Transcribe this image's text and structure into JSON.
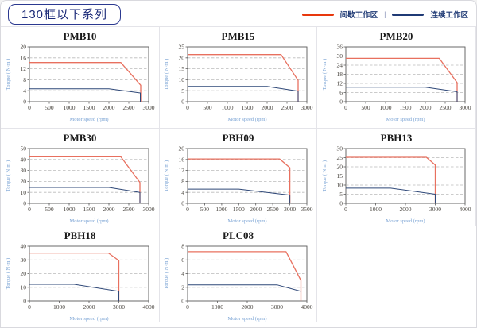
{
  "header": {
    "title": "130框以下系列",
    "legend": {
      "intermittent": {
        "label": "间歇工作区",
        "color": "#e8380d"
      },
      "separator": "|",
      "continuous": {
        "label": "连续工作区",
        "color": "#1f3a75"
      }
    }
  },
  "colors": {
    "intermittent_line": "#e8705f",
    "continuous_line": "#2f4878",
    "gridline": "#bbbbbb",
    "axis": "#5a5a5a",
    "axis_label_text": "#7aa3d4",
    "tick_text": "#46423c",
    "cell_border": "#e4e4e9",
    "title_box_border": "#2b3990",
    "title_box_text": "#1b2a78"
  },
  "chart_data": [
    {
      "type": "line",
      "title": "PMB10",
      "xlabel": "Motor speed (rpm)",
      "ylabel": "Torque ( N·m )",
      "xlim": [
        0,
        3000
      ],
      "xticks": [
        0,
        500,
        1000,
        1500,
        2000,
        2500,
        3000
      ],
      "ylim": [
        0,
        20
      ],
      "yticks": [
        0,
        4,
        8,
        12,
        16,
        20
      ],
      "grid": "horizontal-dashed",
      "series": [
        {
          "name": "间歇工作区",
          "color": "#e8705f",
          "points": [
            [
              0,
              14.3
            ],
            [
              2300,
              14.3
            ],
            [
              2800,
              6
            ],
            [
              2800,
              0
            ]
          ]
        },
        {
          "name": "连续工作区",
          "color": "#2f4878",
          "points": [
            [
              0,
              4.7
            ],
            [
              2000,
              4.7
            ],
            [
              2790,
              3.2
            ],
            [
              2790,
              0
            ]
          ]
        }
      ]
    },
    {
      "type": "line",
      "title": "PMB15",
      "xlabel": "Motor speed (rpm)",
      "ylabel": "Torque ( N·m )",
      "xlim": [
        0,
        3000
      ],
      "xticks": [
        0,
        500,
        1000,
        1500,
        2000,
        2500,
        3000
      ],
      "ylim": [
        0,
        25
      ],
      "yticks": [
        0,
        5,
        10,
        15,
        20,
        25
      ],
      "grid": "horizontal-dashed",
      "series": [
        {
          "name": "间歇工作区",
          "color": "#e8705f",
          "points": [
            [
              0,
              21.5
            ],
            [
              2350,
              21.5
            ],
            [
              2780,
              9.7
            ],
            [
              2780,
              0
            ]
          ]
        },
        {
          "name": "连续工作区",
          "color": "#2f4878",
          "points": [
            [
              0,
              7
            ],
            [
              2000,
              7
            ],
            [
              2780,
              4.8
            ],
            [
              2780,
              0
            ]
          ]
        }
      ]
    },
    {
      "type": "line",
      "title": "PMB20",
      "xlabel": "Motor speed (rpm)",
      "ylabel": "Torque ( N·m )",
      "xlim": [
        0,
        3000
      ],
      "xticks": [
        0,
        500,
        1000,
        1500,
        2000,
        2500,
        3000
      ],
      "ylim": [
        0,
        36
      ],
      "yticks": [
        0,
        6,
        12,
        18,
        24,
        30,
        36
      ],
      "grid": "horizontal-dashed",
      "series": [
        {
          "name": "间歇工作区",
          "color": "#e8705f",
          "points": [
            [
              0,
              28.5
            ],
            [
              2350,
              28.5
            ],
            [
              2800,
              12.5
            ],
            [
              2800,
              0
            ]
          ]
        },
        {
          "name": "连续工作区",
          "color": "#2f4878",
          "points": [
            [
              0,
              9.5
            ],
            [
              2000,
              9.5
            ],
            [
              2800,
              6.5
            ],
            [
              2800,
              0
            ]
          ]
        }
      ]
    },
    {
      "type": "line",
      "title": "PMB30",
      "xlabel": "Motor speed (rpm)",
      "ylabel": "Torque ( N·m )",
      "xlim": [
        0,
        3000
      ],
      "xticks": [
        0,
        500,
        1000,
        1500,
        2000,
        2500,
        3000
      ],
      "ylim": [
        0,
        50
      ],
      "yticks": [
        0,
        10,
        20,
        30,
        40,
        50
      ],
      "grid": "horizontal-dashed",
      "series": [
        {
          "name": "间歇工作区",
          "color": "#e8705f",
          "points": [
            [
              0,
              42.5
            ],
            [
              2300,
              42.5
            ],
            [
              2780,
              19
            ],
            [
              2780,
              0
            ]
          ]
        },
        {
          "name": "连续工作区",
          "color": "#2f4878",
          "points": [
            [
              0,
              14.5
            ],
            [
              2000,
              14.5
            ],
            [
              2780,
              10
            ],
            [
              2780,
              0
            ]
          ]
        }
      ]
    },
    {
      "type": "line",
      "title": "PBH09",
      "xlabel": "Motor speed (rpm)",
      "ylabel": "Torque ( N·m )",
      "xlim": [
        0,
        3500
      ],
      "xticks": [
        0,
        500,
        1000,
        1500,
        2000,
        2500,
        3000,
        3500
      ],
      "ylim": [
        0,
        20
      ],
      "yticks": [
        0,
        4,
        8,
        12,
        16,
        20
      ],
      "grid": "horizontal-dashed",
      "series": [
        {
          "name": "间歇工作区",
          "color": "#e8705f",
          "points": [
            [
              0,
              16.2
            ],
            [
              2700,
              16.2
            ],
            [
              3000,
              13
            ],
            [
              3000,
              0
            ]
          ]
        },
        {
          "name": "连续工作区",
          "color": "#2f4878",
          "points": [
            [
              0,
              5.2
            ],
            [
              1500,
              5.2
            ],
            [
              3000,
              3
            ],
            [
              3000,
              0
            ]
          ]
        }
      ]
    },
    {
      "type": "line",
      "title": "PBH13",
      "xlabel": "Motor speed (rpm)",
      "ylabel": "Torque ( N·m )",
      "xlim": [
        0,
        4000
      ],
      "xticks": [
        0,
        1000,
        2000,
        3000,
        4000
      ],
      "ylim": [
        0,
        30
      ],
      "yticks": [
        0,
        5,
        10,
        15,
        20,
        25,
        30
      ],
      "grid": "horizontal-dashed",
      "series": [
        {
          "name": "间歇工作区",
          "color": "#e8705f",
          "points": [
            [
              0,
              25.2
            ],
            [
              2700,
              25.2
            ],
            [
              3000,
              21
            ],
            [
              3000,
              0
            ]
          ]
        },
        {
          "name": "连续工作区",
          "color": "#2f4878",
          "points": [
            [
              0,
              8.3
            ],
            [
              1500,
              8.3
            ],
            [
              3000,
              5
            ],
            [
              3000,
              0
            ]
          ]
        }
      ]
    },
    {
      "type": "line",
      "title": "PBH18",
      "xlabel": "Motor speed (rpm)",
      "ylabel": "Torque ( N·m )",
      "xlim": [
        0,
        4000
      ],
      "xticks": [
        0,
        1000,
        2000,
        3000,
        4000
      ],
      "ylim": [
        0,
        40
      ],
      "yticks": [
        0,
        10,
        20,
        30,
        40
      ],
      "grid": "horizontal-dashed",
      "series": [
        {
          "name": "间歇工作区",
          "color": "#e8705f",
          "points": [
            [
              0,
              35
            ],
            [
              2650,
              35
            ],
            [
              3000,
              29.5
            ],
            [
              3000,
              0
            ]
          ]
        },
        {
          "name": "连续工作区",
          "color": "#2f4878",
          "points": [
            [
              0,
              12.2
            ],
            [
              1500,
              12.2
            ],
            [
              3000,
              7
            ],
            [
              3000,
              0
            ]
          ]
        }
      ]
    },
    {
      "type": "line",
      "title": "PLC08",
      "xlabel": "Motor speed (rpm)",
      "ylabel": "Torque ( N·m )",
      "xlim": [
        0,
        4000
      ],
      "xticks": [
        0,
        1000,
        2000,
        3000,
        4000
      ],
      "ylim": [
        0,
        8
      ],
      "yticks": [
        0,
        2,
        4,
        6,
        8
      ],
      "grid": "horizontal-dashed",
      "series": [
        {
          "name": "间歇工作区",
          "color": "#e8705f",
          "points": [
            [
              0,
              7.2
            ],
            [
              3300,
              7.2
            ],
            [
              3800,
              3
            ],
            [
              3800,
              0
            ]
          ]
        },
        {
          "name": "连续工作区",
          "color": "#2f4878",
          "points": [
            [
              0,
              2.35
            ],
            [
              3000,
              2.35
            ],
            [
              3800,
              1.4
            ],
            [
              3800,
              0
            ]
          ]
        }
      ]
    }
  ]
}
